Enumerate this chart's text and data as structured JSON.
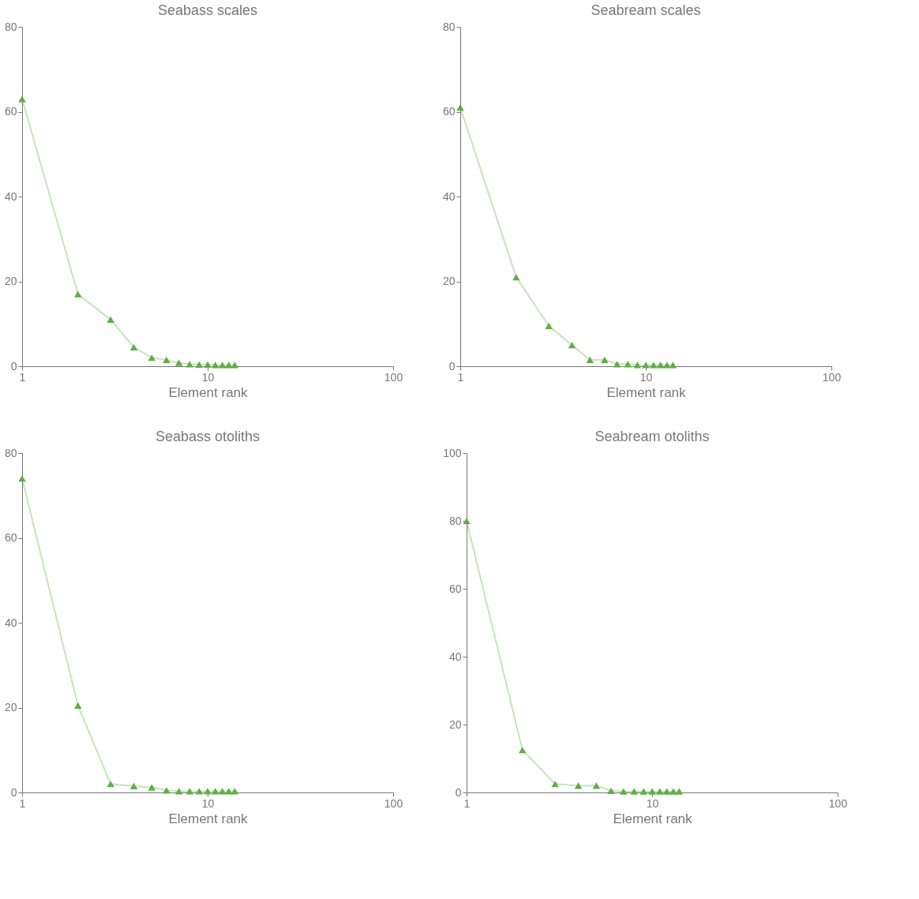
{
  "chart_data": [
    {
      "type": "line",
      "title": "Seabass scales",
      "xlabel": "Element rank",
      "x": [
        1,
        2,
        3,
        4,
        5,
        6,
        7,
        8,
        9,
        10,
        11,
        12,
        13,
        14
      ],
      "series": [
        {
          "color": "#5fae45",
          "values": [
            63,
            17,
            11,
            4.5,
            2,
            1.5,
            0.8,
            0.5,
            0.4,
            0.4,
            0.3,
            0.3,
            0.3,
            0.3
          ]
        }
      ],
      "xlim": [
        1,
        100
      ],
      "xticks": [
        1,
        10,
        100
      ],
      "ylim": [
        0,
        80
      ],
      "yticks": [
        0,
        20,
        40,
        60,
        80
      ],
      "log": "x",
      "grid": false,
      "marker": "triangle",
      "line_style": "solid"
    },
    {
      "type": "line",
      "title": "Seabream scales",
      "xlabel": "Element rank",
      "x": [
        1,
        2,
        3,
        4,
        5,
        6,
        7,
        8,
        9,
        10,
        11,
        12,
        13,
        14
      ],
      "series": [
        {
          "color": "#5fae45",
          "values": [
            61,
            21,
            9.5,
            5,
            1.5,
            1.5,
            0.5,
            0.5,
            0.3,
            0.3,
            0.3,
            0.3,
            0.3,
            0.3
          ]
        }
      ],
      "xlim": [
        1,
        100
      ],
      "xticks": [
        1,
        10,
        100
      ],
      "ylim": [
        0,
        80
      ],
      "yticks": [
        0,
        20,
        40,
        60,
        80
      ],
      "log": "x",
      "grid": false,
      "marker": "triangle",
      "line_style": "solid"
    },
    {
      "type": "line",
      "title": "Seabass otoliths",
      "xlabel": "Element rank",
      "x": [
        1,
        2,
        3,
        4,
        5,
        6,
        7,
        8,
        9,
        10,
        11,
        12,
        13,
        14
      ],
      "series": [
        {
          "color": "#5fae45",
          "values": [
            74,
            20.5,
            2,
            1.5,
            1.2,
            0.5,
            0.3,
            0.3,
            0.3,
            0.3,
            0.3,
            0.3,
            0.3,
            0.3
          ]
        }
      ],
      "xlim": [
        1,
        100
      ],
      "xticks": [
        1,
        10,
        100
      ],
      "ylim": [
        0,
        80
      ],
      "yticks": [
        0,
        20,
        40,
        60,
        80
      ],
      "log": "x",
      "grid": false,
      "marker": "triangle",
      "line_style": "solid"
    },
    {
      "type": "line",
      "title": "Seabream otoliths",
      "xlabel": "Element rank",
      "x": [
        1,
        2,
        3,
        4,
        5,
        6,
        7,
        8,
        9,
        10,
        11,
        12,
        13,
        14
      ],
      "series": [
        {
          "color": "#5fae45",
          "values": [
            80,
            12.5,
            2.5,
            2,
            2,
            0.5,
            0.3,
            0.3,
            0.3,
            0.3,
            0.3,
            0.3,
            0.3,
            0.3
          ]
        }
      ],
      "xlim": [
        1,
        100
      ],
      "xticks": [
        1,
        10,
        100
      ],
      "ylim": [
        0,
        100
      ],
      "yticks": [
        0,
        20,
        40,
        60,
        80,
        100
      ],
      "log": "x",
      "grid": false,
      "marker": "triangle",
      "line_style": "solid"
    }
  ]
}
